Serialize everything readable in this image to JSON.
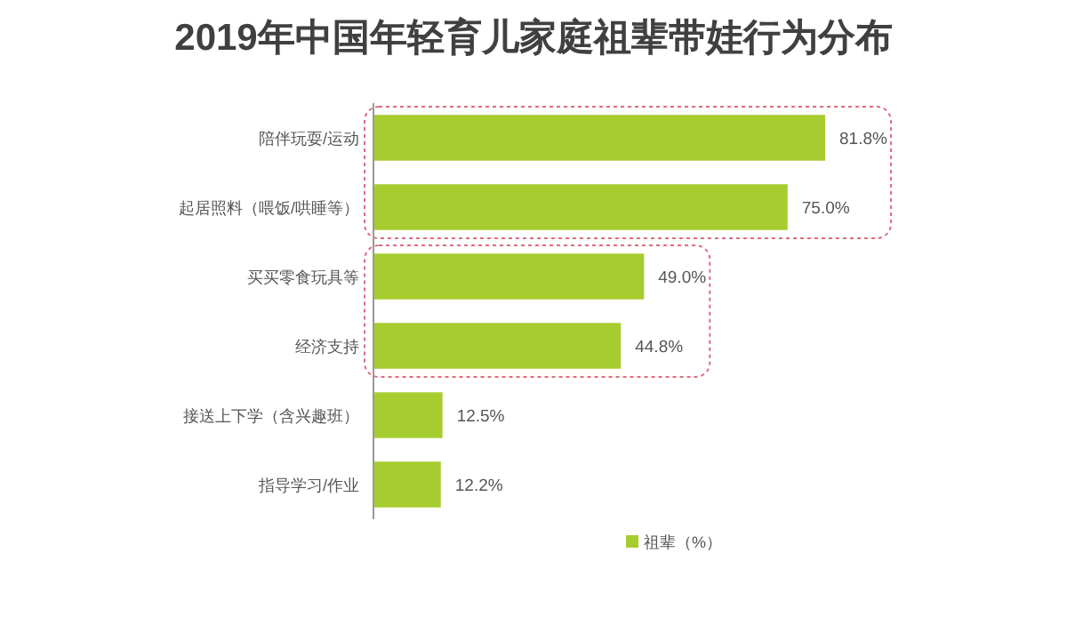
{
  "chart_data": {
    "type": "bar",
    "orientation": "horizontal",
    "title": "2019年中国年轻育儿家庭祖辈带娃行为分布",
    "categories": [
      "陪伴玩耍/运动",
      "起居照料（喂饭/哄睡等）",
      "买买零食玩具等",
      "经济支持",
      "接送上下学（含兴趣班）",
      "指导学习/作业"
    ],
    "series": [
      {
        "name": "祖辈（%）",
        "color": "#a6cc2f",
        "values": [
          81.8,
          75.0,
          49.0,
          44.8,
          12.5,
          12.2
        ],
        "value_labels": [
          "81.8%",
          "75.0%",
          "49.0%",
          "44.8%",
          "12.5%",
          "12.2%"
        ]
      }
    ],
    "legend": "bottom"
  }
}
